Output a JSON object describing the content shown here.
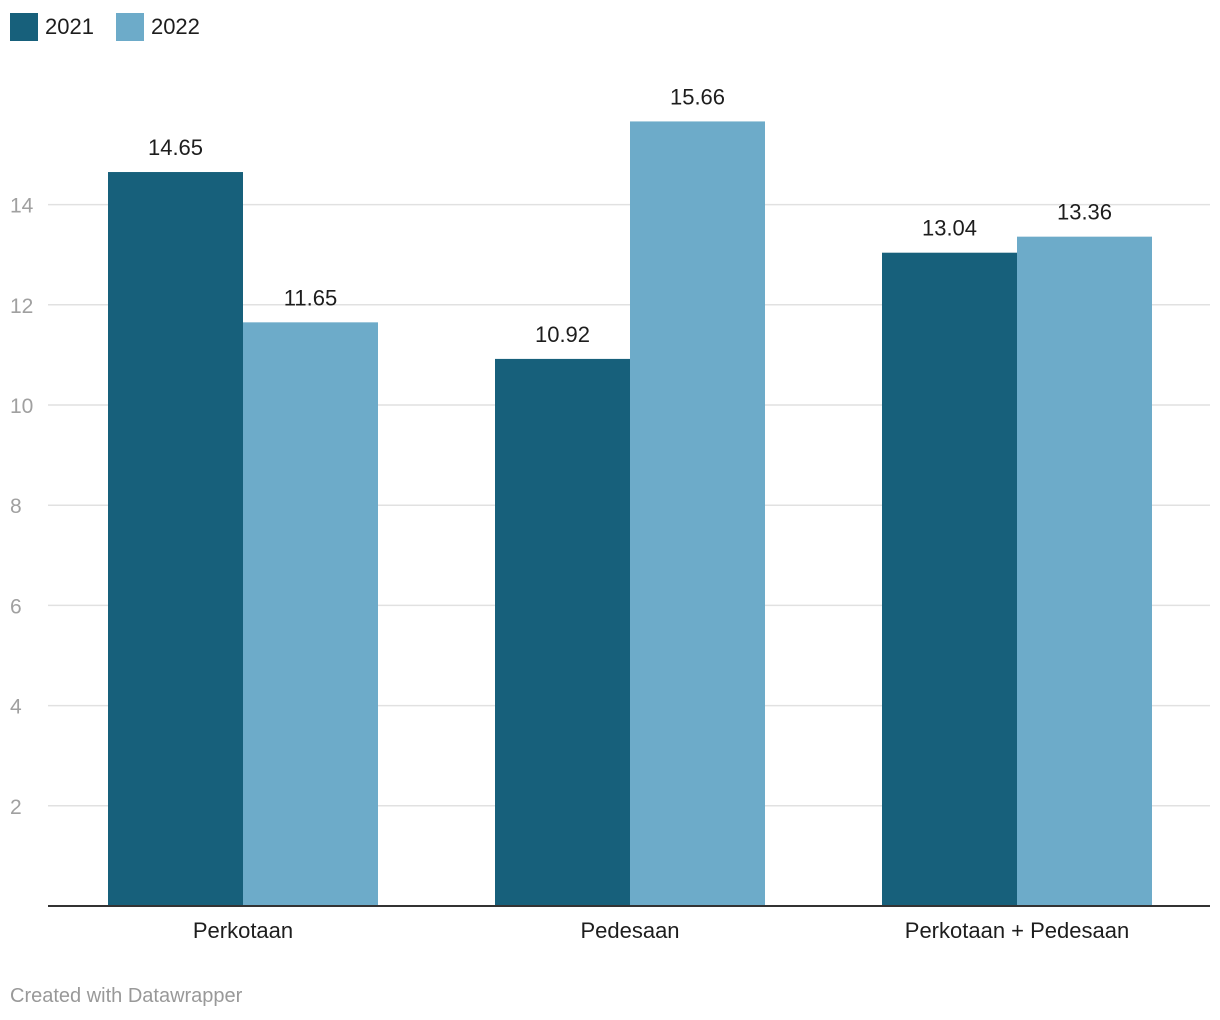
{
  "chart_data": {
    "type": "bar",
    "categories": [
      "Perkotaan",
      "Pedesaan",
      "Perkotaan + Pedesaan"
    ],
    "series": [
      {
        "name": "2021",
        "values": [
          14.65,
          10.92,
          13.04
        ]
      },
      {
        "name": "2022",
        "values": [
          11.65,
          15.66,
          13.36
        ]
      }
    ],
    "yticks": [
      2,
      4,
      6,
      8,
      10,
      12,
      14
    ],
    "ylim": [
      0,
      16.2
    ],
    "grid": true,
    "legend_position": "top-left",
    "colors": [
      "#17607b",
      "#6dabc9"
    ],
    "title": "",
    "xlabel": "",
    "ylabel": ""
  },
  "footer": {
    "credit": "Created with Datawrapper"
  }
}
